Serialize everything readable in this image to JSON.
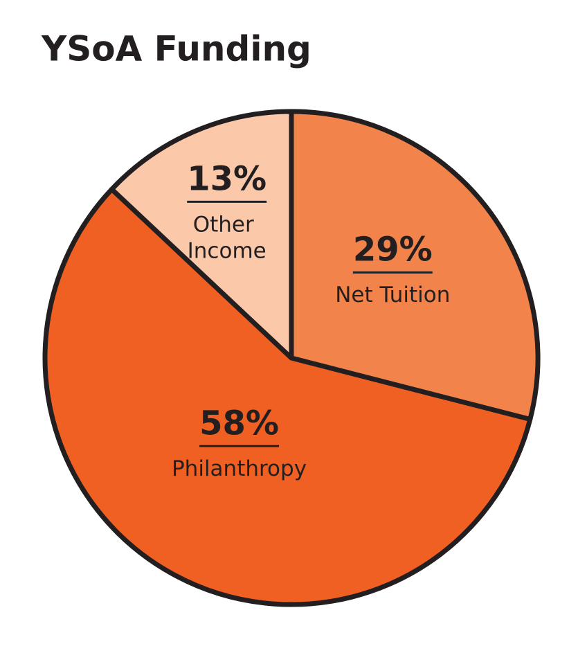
{
  "chart_data": {
    "type": "pie",
    "title": "YSoA Funding",
    "categories": [
      "Net Tuition",
      "Philanthropy",
      "Other Income"
    ],
    "values": [
      29,
      58,
      13
    ],
    "value_labels": [
      "29%",
      "58%",
      "13%"
    ],
    "colors": [
      "#f2834a",
      "#f06023",
      "#fbc9aa"
    ]
  }
}
